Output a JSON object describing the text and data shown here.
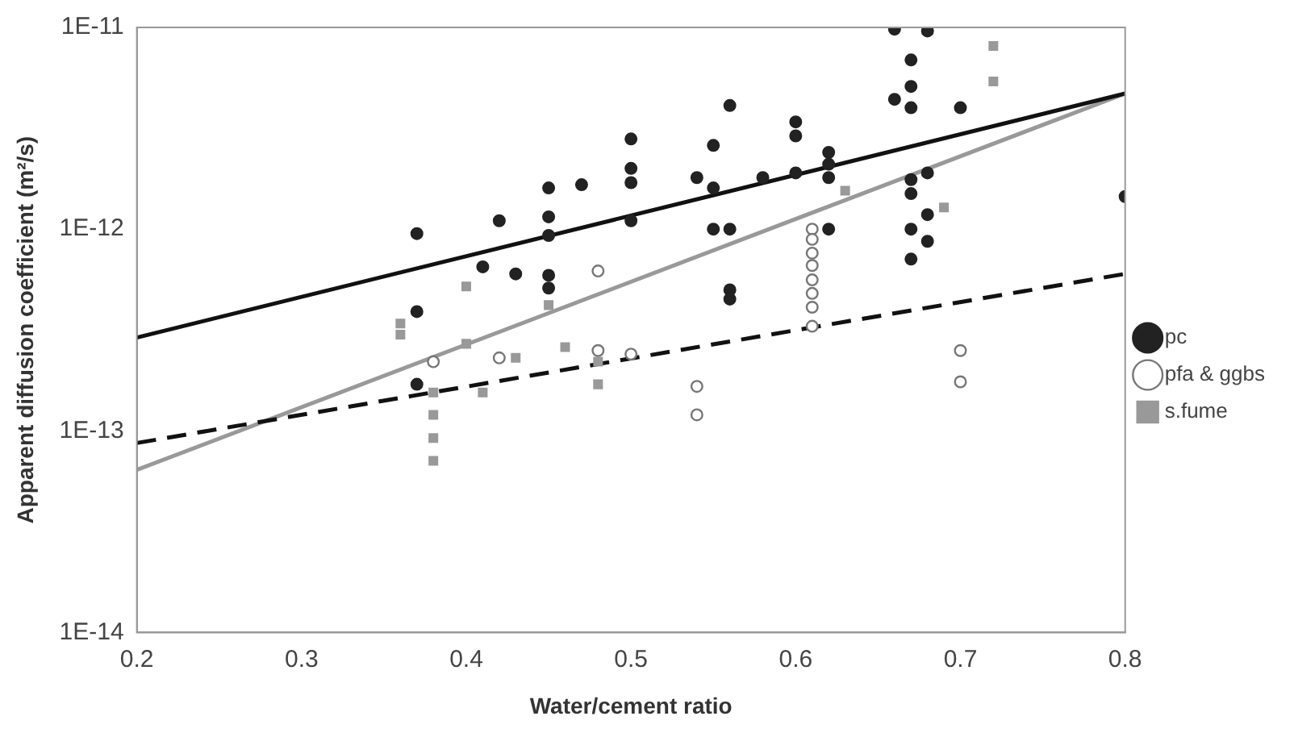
{
  "chart_data": {
    "type": "scatter",
    "xlabel": "Water/cement ratio",
    "ylabel": "Apparent diffusion coefficient (m²/s)",
    "xlim": [
      0.2,
      0.8
    ],
    "xticks": [
      0.2,
      0.3,
      0.4,
      0.5,
      0.6,
      0.7,
      0.8
    ],
    "ylim": [
      1e-14,
      1e-11
    ],
    "yticks": [
      {
        "value": 1e-14,
        "label": "1E-14"
      },
      {
        "value": 1e-13,
        "label": "1E-13"
      },
      {
        "value": 1e-12,
        "label": "1E-12"
      },
      {
        "value": 1e-11,
        "label": "1E-11"
      }
    ],
    "log": "y",
    "grid": false,
    "legend": "right",
    "series": [
      {
        "name": "pc",
        "color": "#222222",
        "marker": "circle",
        "x": [
          0.37,
          0.42,
          0.41,
          0.43,
          0.37,
          0.37,
          0.45,
          0.45,
          0.45,
          0.45,
          0.45,
          0.47,
          0.5,
          0.5,
          0.5,
          0.5,
          0.56,
          0.55,
          0.54,
          0.55,
          0.55,
          0.56,
          0.56,
          0.56,
          0.58,
          0.6,
          0.6,
          0.6,
          0.62,
          0.62,
          0.62,
          0.62,
          0.66,
          0.68,
          0.67,
          0.67,
          0.66,
          0.67,
          0.7,
          0.67,
          0.68,
          0.67,
          0.68,
          0.67,
          0.68,
          0.67,
          0.8
        ],
        "values": [
          9.5e-13,
          1.1e-12,
          6.5e-13,
          6e-13,
          3.9e-13,
          1.7e-13,
          1.6e-12,
          1.15e-12,
          9.3e-13,
          5.9e-13,
          5.1e-13,
          1.66e-12,
          2.8e-12,
          2e-12,
          1.7e-12,
          1.1e-12,
          4.1e-12,
          2.6e-12,
          1.8e-12,
          1.6e-12,
          1e-12,
          1e-12,
          5e-13,
          4.5e-13,
          1.8e-12,
          3.4e-12,
          2.9e-12,
          1.9e-12,
          2.4e-12,
          2.1e-12,
          1.8e-12,
          1e-12,
          9.8e-12,
          9.6e-12,
          6.9e-12,
          5.1e-12,
          4.4e-12,
          4e-12,
          4e-12,
          1.76e-12,
          1.9e-12,
          1.5e-12,
          1.18e-12,
          1e-12,
          8.7e-13,
          7.1e-13,
          1.45e-12
        ]
      },
      {
        "name": "pfa & ggbs",
        "color": "#777777",
        "marker": "circle_open",
        "x": [
          0.38,
          0.42,
          0.48,
          0.48,
          0.5,
          0.54,
          0.54,
          0.61,
          0.61,
          0.61,
          0.61,
          0.61,
          0.61,
          0.61,
          0.61,
          0.7,
          0.7
        ],
        "values": [
          2.2e-13,
          2.3e-13,
          6.2e-13,
          2.5e-13,
          2.4e-13,
          1.66e-13,
          1.2e-13,
          1e-12,
          8.9e-13,
          7.6e-13,
          6.6e-13,
          5.6e-13,
          4.8e-13,
          4.1e-13,
          3.3e-13,
          2.5e-13,
          1.75e-13
        ]
      },
      {
        "name": "s.fume",
        "color": "#999999",
        "marker": "square",
        "x": [
          0.38,
          0.38,
          0.38,
          0.38,
          0.4,
          0.36,
          0.36,
          0.4,
          0.41,
          0.43,
          0.45,
          0.46,
          0.48,
          0.48,
          0.63,
          0.69,
          0.72,
          0.72
        ],
        "values": [
          1.55e-13,
          1.2e-13,
          9.2e-14,
          7.1e-14,
          5.2e-13,
          3.4e-13,
          3e-13,
          2.7e-13,
          1.55e-13,
          2.3e-13,
          4.2e-13,
          2.6e-13,
          2.2e-13,
          1.7e-13,
          1.55e-12,
          1.28e-12,
          8.1e-12,
          5.4e-12
        ]
      },
      {
        "type": "line",
        "color": "#111111",
        "marker": "none",
        "line_style": "solid",
        "x": [
          0.2,
          0.8
        ],
        "values": [
          2.9e-13,
          4.7e-12
        ]
      },
      {
        "type": "line",
        "color": "#111111",
        "marker": "none",
        "line_style": "dashed",
        "x": [
          0.2,
          0.8
        ],
        "values": [
          8.7e-14,
          6e-13
        ]
      },
      {
        "type": "line",
        "color": "#999999",
        "marker": "none",
        "line_style": "solid",
        "x": [
          0.2,
          0.8
        ],
        "values": [
          6.4e-14,
          4.7e-12
        ]
      }
    ]
  }
}
